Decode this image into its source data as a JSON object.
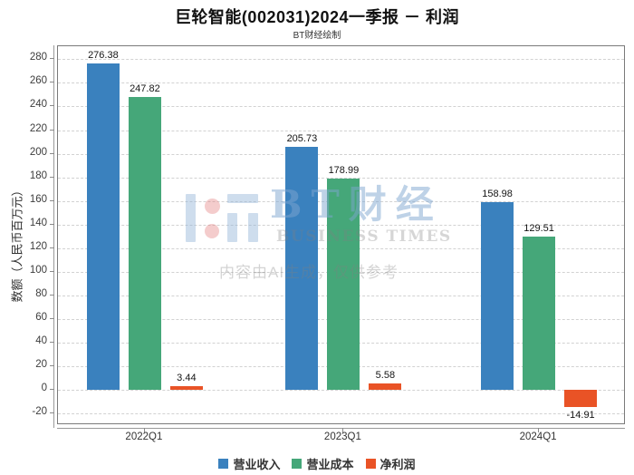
{
  "page": {
    "title": "巨轮智能(002031)2024一季报 － 利润",
    "subtitle": "BT财经绘制"
  },
  "watermark": {
    "brand_cn": "BT财经",
    "brand_en": "BUSINESS TIMES",
    "disclaimer": "内容由AI生成，仅供参考"
  },
  "chart_data": {
    "type": "bar",
    "title": "巨轮智能(002031)2024一季报 － 利润",
    "subtitle": "BT财经绘制",
    "categories": [
      "2022Q1",
      "2023Q1",
      "2024Q1"
    ],
    "series": [
      {
        "name": "营业收入",
        "color": "#3a81be",
        "values": [
          276.38,
          205.73,
          158.98
        ]
      },
      {
        "name": "营业成本",
        "color": "#45a779",
        "values": [
          247.82,
          178.99,
          129.51
        ]
      },
      {
        "name": "净利润",
        "color": "#e95326",
        "values": [
          3.44,
          5.58,
          -14.91
        ]
      }
    ],
    "xlabel": "",
    "ylabel": "数额（人民币百万元）",
    "ylim": [
      -30,
      291
    ],
    "yticks": [
      -20,
      0,
      20,
      40,
      60,
      80,
      100,
      120,
      140,
      160,
      180,
      200,
      220,
      240,
      260,
      280
    ],
    "grid": true,
    "grid_style": "dashed",
    "legend_position": "bottom"
  }
}
